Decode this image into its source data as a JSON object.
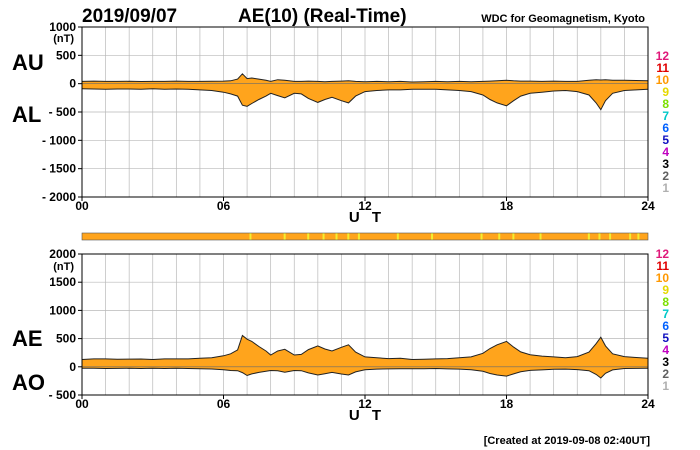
{
  "header": {
    "date": "2019/09/07",
    "title": "AE(10) (Real-Time)",
    "source": "WDC for Geomagnetism, Kyoto"
  },
  "footer": {
    "created": "[Created at 2019-09-08 02:40UT]"
  },
  "colors": {
    "fill": "#ffa41c",
    "highlight": "#f4ee30",
    "line": "#222222"
  },
  "chart_data": [
    {
      "type": "area",
      "title": "AE(10) (Real-Time)",
      "upper_label": "AU",
      "lower_label": "AL",
      "ylabel": "(nT)",
      "xlabel": "U T",
      "ylim": [
        -2000,
        1000
      ],
      "y_ticks": [
        {
          "value": 1000,
          "label": "1000"
        },
        {
          "value": 500,
          "label": "500"
        },
        {
          "value": 0,
          "label": "0"
        },
        {
          "value": -500,
          "label": "- 500"
        },
        {
          "value": -1000,
          "label": "- 1000"
        },
        {
          "value": -1500,
          "label": "- 1500"
        },
        {
          "value": -2000,
          "label": "- 2000"
        }
      ],
      "xlim": [
        0,
        24
      ],
      "x_ticks": [
        {
          "value": 0,
          "label": "00"
        },
        {
          "value": 6,
          "label": "06"
        },
        {
          "value": 12,
          "label": "12"
        },
        {
          "value": 18,
          "label": "18"
        },
        {
          "value": 24,
          "label": "24"
        }
      ],
      "levels": [
        "12",
        "11",
        "10",
        "9",
        "8",
        "7",
        "6",
        "5",
        "4",
        "3",
        "2",
        "1"
      ],
      "level_colors": [
        "#e0187a",
        "#e00000",
        "#ff9800",
        "#e6d800",
        "#7ce000",
        "#00c8c8",
        "#0060ff",
        "#1010c0",
        "#c000c0",
        "#000000",
        "#606060",
        "#b0b0b0"
      ],
      "series": [
        {
          "name": "AU",
          "x": [
            0,
            0.5,
            1,
            1.5,
            2,
            2.5,
            3,
            3.5,
            4,
            4.5,
            5,
            5.5,
            6,
            6.3,
            6.6,
            6.8,
            7.0,
            7.2,
            7.5,
            7.8,
            8,
            8.3,
            8.6,
            9,
            9.3,
            9.6,
            10,
            10.3,
            10.6,
            11,
            11.3,
            11.6,
            12,
            12.5,
            13,
            13.5,
            14,
            14.5,
            15,
            15.5,
            16,
            16.5,
            17,
            17.3,
            17.6,
            18,
            18.3,
            18.6,
            19,
            19.5,
            20,
            20.5,
            21,
            21.5,
            21.8,
            22,
            22.2,
            22.5,
            23,
            23.5,
            24
          ],
          "values": [
            40,
            45,
            40,
            40,
            42,
            38,
            40,
            40,
            45,
            40,
            40,
            42,
            45,
            50,
            80,
            175,
            90,
            100,
            80,
            60,
            40,
            70,
            60,
            40,
            40,
            45,
            40,
            35,
            40,
            45,
            50,
            40,
            35,
            40,
            35,
            40,
            30,
            35,
            40,
            35,
            40,
            35,
            40,
            45,
            50,
            60,
            50,
            45,
            45,
            40,
            45,
            40,
            40,
            60,
            70,
            65,
            70,
            60,
            60,
            55,
            50
          ]
        },
        {
          "name": "AL",
          "x": [
            0,
            0.5,
            1,
            1.5,
            2,
            2.5,
            3,
            3.5,
            4,
            4.5,
            5,
            5.5,
            6,
            6.3,
            6.6,
            6.8,
            7.0,
            7.2,
            7.5,
            7.8,
            8,
            8.3,
            8.6,
            9,
            9.3,
            9.6,
            10,
            10.3,
            10.6,
            11,
            11.3,
            11.6,
            12,
            12.5,
            13,
            13.5,
            14,
            14.5,
            15,
            15.5,
            16,
            16.5,
            17,
            17.3,
            17.6,
            18,
            18.3,
            18.6,
            19,
            19.5,
            20,
            20.5,
            21,
            21.5,
            21.8,
            22,
            22.2,
            22.5,
            23,
            23.5,
            24
          ],
          "values": [
            -90,
            -95,
            -100,
            -95,
            -95,
            -100,
            -90,
            -100,
            -95,
            -100,
            -110,
            -120,
            -150,
            -180,
            -220,
            -380,
            -400,
            -350,
            -280,
            -220,
            -170,
            -210,
            -250,
            -170,
            -180,
            -260,
            -330,
            -280,
            -240,
            -300,
            -340,
            -220,
            -140,
            -120,
            -110,
            -110,
            -100,
            -100,
            -100,
            -110,
            -120,
            -140,
            -200,
            -280,
            -340,
            -390,
            -300,
            -220,
            -170,
            -150,
            -130,
            -120,
            -140,
            -200,
            -340,
            -460,
            -300,
            -170,
            -120,
            -110,
            -100
          ]
        }
      ]
    },
    {
      "type": "area",
      "title": "AE(10) (Real-Time)",
      "upper_label": "AE",
      "lower_label": "AO",
      "ylabel": "(nT)",
      "xlabel": "U T",
      "ylim": [
        -500,
        2000
      ],
      "y_ticks": [
        {
          "value": 2000,
          "label": "2000"
        },
        {
          "value": 1500,
          "label": "1500"
        },
        {
          "value": 1000,
          "label": "1000"
        },
        {
          "value": 500,
          "label": "500"
        },
        {
          "value": 0,
          "label": "0"
        },
        {
          "value": -500,
          "label": "- 500"
        }
      ],
      "xlim": [
        0,
        24
      ],
      "x_ticks": [
        {
          "value": 0,
          "label": "00"
        },
        {
          "value": 6,
          "label": "06"
        },
        {
          "value": 12,
          "label": "12"
        },
        {
          "value": 18,
          "label": "18"
        },
        {
          "value": 24,
          "label": "24"
        }
      ],
      "levels": [
        "12",
        "11",
        "10",
        "9",
        "8",
        "7",
        "6",
        "5",
        "4",
        "3",
        "2",
        "1"
      ],
      "level_colors": [
        "#e0187a",
        "#e00000",
        "#ff9800",
        "#e6d800",
        "#7ce000",
        "#00c8c8",
        "#0060ff",
        "#1010c0",
        "#c000c0",
        "#000000",
        "#606060",
        "#b0b0b0"
      ],
      "series": [
        {
          "name": "AE",
          "x": [
            0,
            0.5,
            1,
            1.5,
            2,
            2.5,
            3,
            3.5,
            4,
            4.5,
            5,
            5.5,
            6,
            6.3,
            6.6,
            6.8,
            7.0,
            7.2,
            7.5,
            7.8,
            8,
            8.3,
            8.6,
            9,
            9.3,
            9.6,
            10,
            10.3,
            10.6,
            11,
            11.3,
            11.6,
            12,
            12.5,
            13,
            13.5,
            14,
            14.5,
            15,
            15.5,
            16,
            16.5,
            17,
            17.3,
            17.6,
            18,
            18.3,
            18.6,
            19,
            19.5,
            20,
            20.5,
            21,
            21.5,
            21.8,
            22,
            22.2,
            22.5,
            23,
            23.5,
            24
          ],
          "values": [
            130,
            140,
            140,
            135,
            137,
            138,
            130,
            140,
            140,
            140,
            150,
            162,
            195,
            230,
            300,
            555,
            490,
            450,
            360,
            280,
            210,
            280,
            310,
            210,
            220,
            305,
            370,
            315,
            280,
            345,
            390,
            260,
            175,
            160,
            145,
            150,
            130,
            135,
            140,
            145,
            160,
            175,
            240,
            325,
            390,
            450,
            350,
            265,
            215,
            190,
            175,
            160,
            180,
            260,
            410,
            525,
            370,
            230,
            180,
            165,
            150
          ]
        },
        {
          "name": "AO",
          "x": [
            0,
            0.5,
            1,
            1.5,
            2,
            2.5,
            3,
            3.5,
            4,
            4.5,
            5,
            5.5,
            6,
            6.3,
            6.6,
            6.8,
            7.0,
            7.2,
            7.5,
            7.8,
            8,
            8.3,
            8.6,
            9,
            9.3,
            9.6,
            10,
            10.3,
            10.6,
            11,
            11.3,
            11.6,
            12,
            12.5,
            13,
            13.5,
            14,
            14.5,
            15,
            15.5,
            16,
            16.5,
            17,
            17.3,
            17.6,
            18,
            18.3,
            18.6,
            19,
            19.5,
            20,
            20.5,
            21,
            21.5,
            21.8,
            22,
            22.2,
            22.5,
            23,
            23.5,
            24
          ],
          "values": [
            -25,
            -25,
            -30,
            -28,
            -27,
            -31,
            -25,
            -30,
            -25,
            -30,
            -35,
            -39,
            -53,
            -65,
            -70,
            -103,
            -155,
            -125,
            -100,
            -80,
            -65,
            -70,
            -95,
            -65,
            -70,
            -108,
            -145,
            -123,
            -100,
            -128,
            -145,
            -90,
            -53,
            -40,
            -38,
            -35,
            -35,
            -33,
            -30,
            -38,
            -40,
            -53,
            -80,
            -118,
            -145,
            -165,
            -125,
            -88,
            -63,
            -55,
            -43,
            -40,
            -50,
            -70,
            -135,
            -198,
            -115,
            -55,
            -30,
            -28,
            -25
          ]
        }
      ]
    }
  ]
}
